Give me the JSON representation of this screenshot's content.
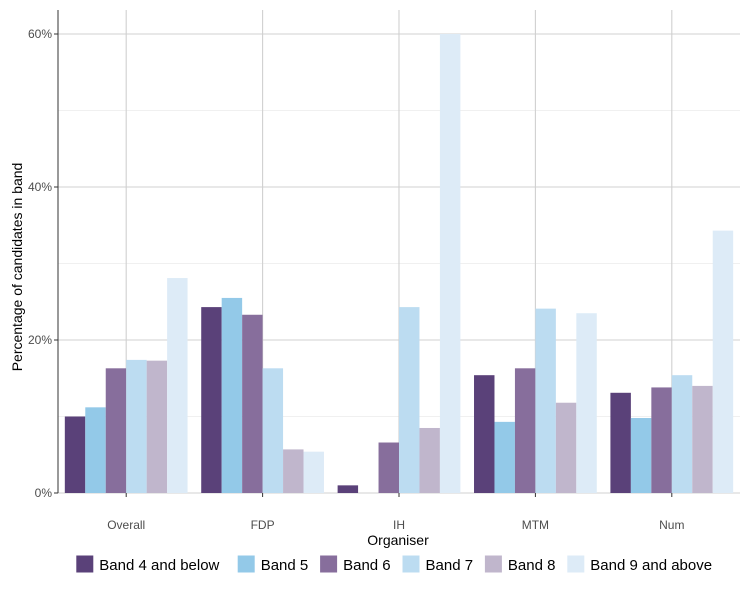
{
  "chart_data": {
    "type": "bar",
    "xlabel": "Organiser",
    "ylabel": "Percentage of candidates in band",
    "categories": [
      "Overall",
      "FDP",
      "IH",
      "MTM",
      "Num"
    ],
    "ylim": [
      0,
      0.6
    ],
    "yticks": [
      0,
      0.2,
      0.4,
      0.6
    ],
    "ytick_labels": [
      "0%",
      "20%",
      "40%",
      "60%"
    ],
    "grid": true,
    "legend_position": "bottom",
    "series": [
      {
        "name": "Band 4 and below",
        "color": "#5a4179",
        "values": [
          0.1,
          0.243,
          0.01,
          0.154,
          0.131
        ]
      },
      {
        "name": "Band 5",
        "color": "#93c9e8",
        "values": [
          0.112,
          0.255,
          0.0,
          0.093,
          0.098
        ]
      },
      {
        "name": "Band 6",
        "color": "#876e9c",
        "values": [
          0.163,
          0.233,
          0.066,
          0.163,
          0.138
        ]
      },
      {
        "name": "Band 7",
        "color": "#bcdcf1",
        "values": [
          0.174,
          0.163,
          0.243,
          0.241,
          0.154
        ]
      },
      {
        "name": "Band 8",
        "color": "#c0b6cc",
        "values": [
          0.173,
          0.057,
          0.085,
          0.118,
          0.14
        ]
      },
      {
        "name": "Band 9 and above",
        "color": "#ddebf7",
        "values": [
          0.281,
          0.054,
          0.6,
          0.235,
          0.343
        ]
      }
    ]
  }
}
